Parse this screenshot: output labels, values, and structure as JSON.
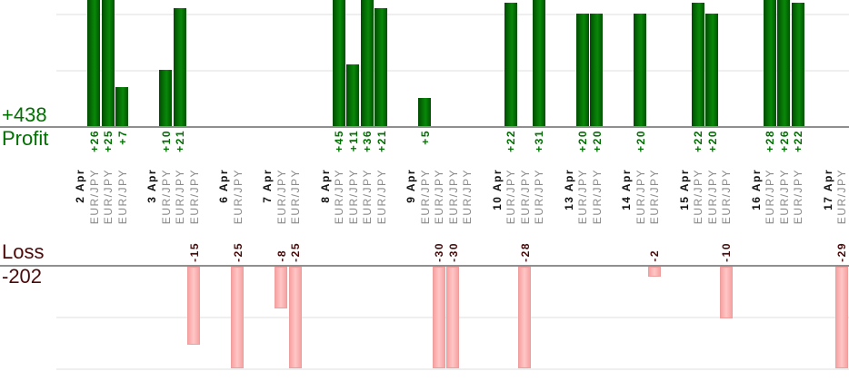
{
  "profit_chart": {
    "total": "+438",
    "label": "Profit"
  },
  "loss_chart": {
    "total": "-202",
    "label": "Loss"
  },
  "colors": {
    "profit_text": "#007000",
    "profit_bar": "#067306",
    "loss_text": "#4a0a0a",
    "loss_bar": "#ffc2c2",
    "loss_bar_border": "#ef9e9e",
    "axis": "#8f8f8f",
    "grid": "#efefef",
    "date_text": "#111111",
    "instrument_text": "#8a8a8a"
  },
  "chart_data": {
    "type": "bar",
    "title": "",
    "xlabel": "",
    "ylabel_positive": "Profit",
    "ylabel_negative": "Loss",
    "profit_total": 438,
    "loss_total": -202,
    "gridline_step": 10,
    "bars_clipped": true,
    "groups": [
      {
        "date": "2 Apr",
        "trades": [
          {
            "instrument": "EUR/JPY",
            "value": 26
          },
          {
            "instrument": "EUR/JPY",
            "value": 25
          },
          {
            "instrument": "EUR/JPY",
            "value": 7
          }
        ]
      },
      {
        "date": "3 Apr",
        "trades": [
          {
            "instrument": "EUR/JPY",
            "value": 10
          },
          {
            "instrument": "EUR/JPY",
            "value": 21
          },
          {
            "instrument": "EUR/JPY",
            "value": -15
          }
        ]
      },
      {
        "date": "6 Apr",
        "trades": [
          {
            "instrument": "EUR/JPY",
            "value": -25
          }
        ]
      },
      {
        "date": "7 Apr",
        "trades": [
          {
            "instrument": "EUR/JPY",
            "value": -8
          },
          {
            "instrument": "EUR/JPY",
            "value": -25
          }
        ]
      },
      {
        "date": "8 Apr",
        "trades": [
          {
            "instrument": "EUR/JPY",
            "value": 45
          },
          {
            "instrument": "EUR/JPY",
            "value": 11
          },
          {
            "instrument": "EUR/JPY",
            "value": 36
          },
          {
            "instrument": "EUR/JPY",
            "value": 21
          }
        ]
      },
      {
        "date": "9 Apr",
        "trades": [
          {
            "instrument": "EUR/JPY",
            "value": 5
          },
          {
            "instrument": "EUR/JPY",
            "value": -30
          },
          {
            "instrument": "EUR/JPY",
            "value": -30
          },
          {
            "instrument": "EUR/JPY",
            "value": 0
          }
        ]
      },
      {
        "date": "10 Apr",
        "trades": [
          {
            "instrument": "EUR/JPY",
            "value": 22
          },
          {
            "instrument": "EUR/JPY",
            "value": -28
          },
          {
            "instrument": "EUR/JPY",
            "value": 31
          }
        ]
      },
      {
        "date": "13 Apr",
        "trades": [
          {
            "instrument": "EUR/JPY",
            "value": 20
          },
          {
            "instrument": "EUR/JPY",
            "value": 20
          }
        ]
      },
      {
        "date": "14 Apr",
        "trades": [
          {
            "instrument": "EUR/JPY",
            "value": 20
          },
          {
            "instrument": "EUR/JPY",
            "value": -2
          }
        ]
      },
      {
        "date": "15 Apr",
        "trades": [
          {
            "instrument": "EUR/JPY",
            "value": 22
          },
          {
            "instrument": "EUR/JPY",
            "value": 20
          },
          {
            "instrument": "EUR/JPY",
            "value": -10
          }
        ]
      },
      {
        "date": "16 Apr",
        "trades": [
          {
            "instrument": "EUR/JPY",
            "value": 28
          },
          {
            "instrument": "EUR/JPY",
            "value": 26
          },
          {
            "instrument": "EUR/JPY",
            "value": 22
          }
        ]
      },
      {
        "date": "17 Apr",
        "trades": [
          {
            "instrument": "EUR/JPY",
            "value": -29
          }
        ]
      }
    ]
  }
}
